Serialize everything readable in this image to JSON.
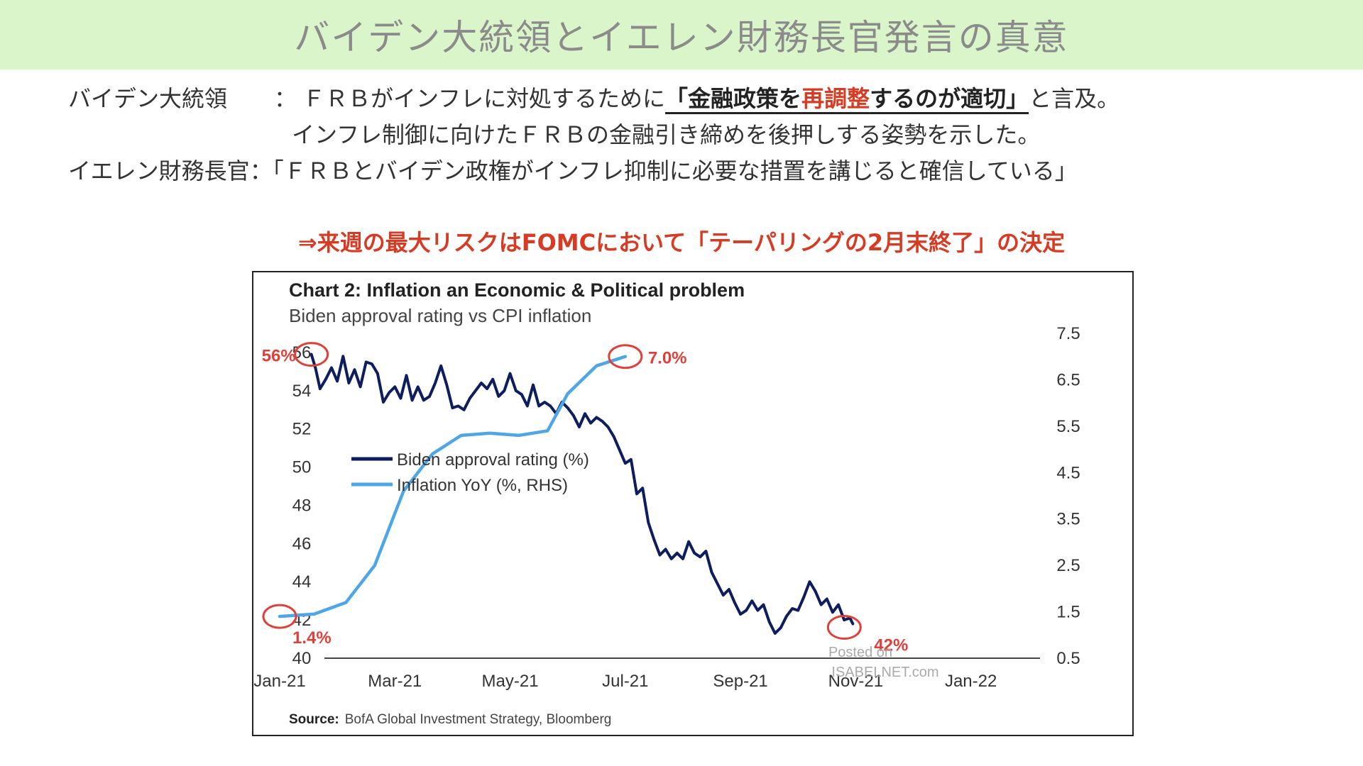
{
  "banner": {
    "title": "バイデン大統領とイエレン財務長官発言の真意"
  },
  "statements": {
    "biden": {
      "speaker": "バイデン大統領",
      "sep": "：",
      "before": "ＦＲＢがインフレに対処するために",
      "em_a": "「金融政策を",
      "em_red": "再調整",
      "em_b": "するのが適切」",
      "after": "と言及。",
      "line2": "インフレ制御に向けたＦＲＢの金融引き締めを後押しする姿勢を示した。"
    },
    "yellen": {
      "speaker": "イエレン財務長官",
      "sep": "：",
      "text": "「ＦＲＢとバイデン政権がインフレ抑制に必要な措置を講じると確信している」"
    }
  },
  "callout": "⇒来週の最大リスクはFOMCにおいて「テーパリングの2月末終了」の決定",
  "chart_data": {
    "type": "line",
    "title": "Chart 2: Inflation an Economic & Political problem",
    "subtitle": "Biden approval rating vs CPI inflation",
    "x_ticks": [
      "Jan-21",
      "Mar-21",
      "May-21",
      "Jul-21",
      "Sep-21",
      "Nov-21",
      "Jan-22"
    ],
    "y_left_ticks": [
      "56",
      "54",
      "52",
      "50",
      "48",
      "46",
      "44",
      "42",
      "40"
    ],
    "y_right_ticks": [
      "7.5",
      "6.5",
      "5.5",
      "4.5",
      "3.5",
      "2.5",
      "1.5",
      "0.5"
    ],
    "ylim_left": [
      40,
      57
    ],
    "ylim_right": [
      0.5,
      7.5
    ],
    "xlim_months": [
      0,
      13.2
    ],
    "legend_placement": "center-left",
    "series": [
      {
        "name": "Biden approval rating (%)",
        "axis": "left",
        "color": "#0d1d5e",
        "points": [
          [
            0.55,
            55.9
          ],
          [
            0.62,
            55.2
          ],
          [
            0.7,
            54.1
          ],
          [
            0.8,
            54.6
          ],
          [
            0.9,
            55.2
          ],
          [
            1.0,
            54.5
          ],
          [
            1.1,
            55.8
          ],
          [
            1.2,
            54.4
          ],
          [
            1.3,
            55.1
          ],
          [
            1.4,
            54.2
          ],
          [
            1.5,
            55.5
          ],
          [
            1.6,
            55.4
          ],
          [
            1.7,
            54.9
          ],
          [
            1.8,
            53.4
          ],
          [
            1.9,
            53.9
          ],
          [
            2.0,
            54.2
          ],
          [
            2.1,
            53.6
          ],
          [
            2.2,
            54.8
          ],
          [
            2.3,
            53.5
          ],
          [
            2.4,
            54.2
          ],
          [
            2.5,
            53.5
          ],
          [
            2.6,
            53.7
          ],
          [
            2.7,
            54.4
          ],
          [
            2.8,
            55.3
          ],
          [
            2.9,
            54.3
          ],
          [
            3.0,
            53.1
          ],
          [
            3.1,
            53.2
          ],
          [
            3.2,
            53.0
          ],
          [
            3.3,
            53.6
          ],
          [
            3.4,
            54.0
          ],
          [
            3.5,
            54.4
          ],
          [
            3.6,
            54.1
          ],
          [
            3.7,
            54.6
          ],
          [
            3.8,
            53.7
          ],
          [
            3.9,
            54.0
          ],
          [
            4.0,
            54.9
          ],
          [
            4.1,
            54.0
          ],
          [
            4.2,
            53.8
          ],
          [
            4.3,
            53.2
          ],
          [
            4.4,
            54.3
          ],
          [
            4.5,
            53.2
          ],
          [
            4.6,
            53.4
          ],
          [
            4.7,
            53.2
          ],
          [
            4.8,
            52.8
          ],
          [
            4.9,
            53.4
          ],
          [
            5.0,
            53.1
          ],
          [
            5.1,
            52.7
          ],
          [
            5.2,
            52.1
          ],
          [
            5.3,
            52.8
          ],
          [
            5.4,
            52.3
          ],
          [
            5.5,
            52.6
          ],
          [
            5.6,
            52.4
          ],
          [
            5.7,
            52.1
          ],
          [
            5.8,
            51.6
          ],
          [
            5.9,
            50.9
          ],
          [
            6.0,
            50.2
          ],
          [
            6.1,
            50.4
          ],
          [
            6.2,
            48.6
          ],
          [
            6.3,
            48.9
          ],
          [
            6.4,
            47.1
          ],
          [
            6.5,
            46.2
          ],
          [
            6.6,
            45.4
          ],
          [
            6.7,
            45.7
          ],
          [
            6.8,
            45.2
          ],
          [
            6.9,
            45.5
          ],
          [
            7.0,
            45.2
          ],
          [
            7.1,
            46.1
          ],
          [
            7.2,
            45.5
          ],
          [
            7.3,
            45.3
          ],
          [
            7.4,
            45.6
          ],
          [
            7.5,
            44.5
          ],
          [
            7.6,
            43.9
          ],
          [
            7.7,
            43.3
          ],
          [
            7.8,
            43.6
          ],
          [
            7.9,
            42.9
          ],
          [
            8.0,
            42.3
          ],
          [
            8.1,
            42.5
          ],
          [
            8.2,
            43.0
          ],
          [
            8.3,
            42.5
          ],
          [
            8.4,
            42.8
          ],
          [
            8.5,
            41.9
          ],
          [
            8.6,
            41.3
          ],
          [
            8.7,
            41.6
          ],
          [
            8.8,
            42.2
          ],
          [
            8.9,
            42.6
          ],
          [
            9.0,
            42.5
          ],
          [
            9.1,
            43.2
          ],
          [
            9.2,
            44.0
          ],
          [
            9.3,
            43.5
          ],
          [
            9.4,
            42.8
          ],
          [
            9.5,
            43.1
          ],
          [
            9.6,
            42.4
          ],
          [
            9.7,
            42.8
          ],
          [
            9.8,
            42.0
          ],
          [
            9.9,
            42.1
          ],
          [
            9.95,
            41.8
          ]
        ]
      },
      {
        "name": "Inflation YoY (%, RHS)",
        "axis": "right",
        "color": "#4ea6e6",
        "points": [
          [
            0,
            1.4
          ],
          [
            0.6,
            1.45
          ],
          [
            1.15,
            1.7
          ],
          [
            1.65,
            2.5
          ],
          [
            2.15,
            4.1
          ],
          [
            2.65,
            4.9
          ],
          [
            3.15,
            5.3
          ],
          [
            3.65,
            5.35
          ],
          [
            4.15,
            5.3
          ],
          [
            4.65,
            5.4
          ],
          [
            5.0,
            6.2
          ],
          [
            5.5,
            6.8
          ],
          [
            6.0,
            7.0
          ]
        ]
      }
    ],
    "annotations": [
      "56%",
      "7.0%",
      "1.4%",
      "42%"
    ],
    "watermark": [
      "Posted on",
      "ISABELNET.com"
    ],
    "source_label": "Source:",
    "source_text": "BofA Global Investment Strategy, Bloomberg"
  }
}
